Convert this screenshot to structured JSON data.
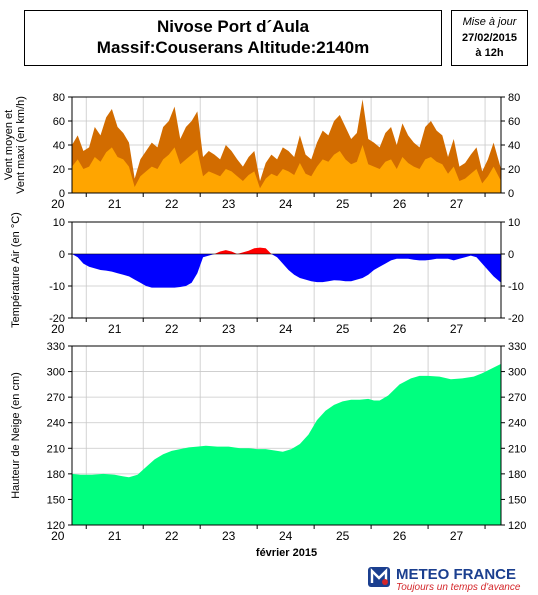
{
  "header": {
    "title_line1": "Nivose Port d´Aula",
    "title_line2": "Massif:Couserans Altitude:2140m"
  },
  "issue": {
    "label": "Mise à jour",
    "date": "27/02/2015",
    "time": "à 12h"
  },
  "footer": {
    "brand": "METEO FRANCE",
    "tagline": "Toujours un temps d'avance"
  },
  "colors": {
    "wind_max": "#d26c00",
    "wind_mean": "#ffa500",
    "temp_neg": "#0000ff",
    "temp_pos": "#ff0000",
    "snow": "#00ff7f",
    "grid": "#c8c8c8"
  },
  "chart_data": [
    {
      "type": "area",
      "ylabel": "Vent moyen et\nVent maxi (en km/h)",
      "ylim": [
        0,
        80
      ],
      "yticks": [
        0,
        20,
        40,
        60,
        80
      ],
      "x_tick_labels": [
        "20",
        "21",
        "22",
        "23",
        "24",
        "25",
        "26",
        "27"
      ],
      "x_start": 19.75,
      "x_end": 27.28,
      "series": [
        {
          "key": "wind_max",
          "x": [
            19.75,
            19.85,
            19.95,
            20.05,
            20.15,
            20.25,
            20.35,
            20.45,
            20.55,
            20.65,
            20.75,
            20.85,
            20.95,
            21.05,
            21.15,
            21.25,
            21.35,
            21.45,
            21.55,
            21.65,
            21.75,
            21.85,
            21.95,
            22.05,
            22.15,
            22.25,
            22.35,
            22.45,
            22.55,
            22.65,
            22.75,
            22.85,
            22.95,
            23.05,
            23.15,
            23.25,
            23.35,
            23.45,
            23.55,
            23.65,
            23.75,
            23.85,
            23.95,
            24.05,
            24.15,
            24.25,
            24.35,
            24.45,
            24.55,
            24.65,
            24.75,
            24.85,
            24.95,
            25.05,
            25.15,
            25.25,
            25.35,
            25.45,
            25.55,
            25.65,
            25.75,
            25.85,
            25.95,
            26.05,
            26.15,
            26.25,
            26.35,
            26.45,
            26.55,
            26.65,
            26.75,
            26.85,
            26.95,
            27.05,
            27.15,
            27.28
          ],
          "values": [
            40,
            48,
            35,
            38,
            55,
            48,
            63,
            70,
            55,
            50,
            42,
            12,
            28,
            35,
            42,
            38,
            55,
            60,
            72,
            45,
            55,
            60,
            68,
            30,
            35,
            32,
            28,
            40,
            35,
            28,
            22,
            30,
            35,
            10,
            25,
            32,
            28,
            38,
            35,
            30,
            48,
            32,
            28,
            42,
            52,
            48,
            60,
            65,
            55,
            45,
            50,
            78,
            45,
            42,
            38,
            50,
            55,
            40,
            58,
            48,
            42,
            38,
            55,
            60,
            52,
            48,
            30,
            45,
            22,
            25,
            32,
            38,
            18,
            28,
            42,
            20
          ]
        },
        {
          "key": "wind_mean",
          "x": [
            19.75,
            19.85,
            19.95,
            20.05,
            20.15,
            20.25,
            20.35,
            20.45,
            20.55,
            20.65,
            20.75,
            20.85,
            20.95,
            21.05,
            21.15,
            21.25,
            21.35,
            21.45,
            21.55,
            21.65,
            21.75,
            21.85,
            21.95,
            22.05,
            22.15,
            22.25,
            22.35,
            22.45,
            22.55,
            22.65,
            22.75,
            22.85,
            22.95,
            23.05,
            23.15,
            23.25,
            23.35,
            23.45,
            23.55,
            23.65,
            23.75,
            23.85,
            23.95,
            24.05,
            24.15,
            24.25,
            24.35,
            24.45,
            24.55,
            24.65,
            24.75,
            24.85,
            24.95,
            25.05,
            25.15,
            25.25,
            25.35,
            25.45,
            25.55,
            25.65,
            25.75,
            25.85,
            25.95,
            26.05,
            26.15,
            26.25,
            26.35,
            26.45,
            26.55,
            26.65,
            26.75,
            26.85,
            26.95,
            27.05,
            27.15,
            27.28
          ],
          "values": [
            22,
            28,
            20,
            22,
            30,
            26,
            34,
            38,
            30,
            28,
            22,
            5,
            14,
            18,
            22,
            20,
            28,
            32,
            38,
            24,
            28,
            32,
            36,
            14,
            18,
            16,
            14,
            20,
            18,
            14,
            10,
            15,
            18,
            4,
            12,
            16,
            14,
            20,
            18,
            15,
            25,
            16,
            14,
            22,
            28,
            26,
            32,
            35,
            28,
            24,
            26,
            40,
            24,
            22,
            20,
            26,
            28,
            20,
            30,
            25,
            22,
            20,
            28,
            30,
            26,
            24,
            16,
            22,
            10,
            12,
            16,
            20,
            8,
            14,
            22,
            10
          ]
        }
      ]
    },
    {
      "type": "area",
      "ylabel": "Température Air (en °C)",
      "ylim": [
        -20,
        10
      ],
      "yticks": [
        -20,
        -10,
        0,
        10
      ],
      "x_tick_labels": [
        "20",
        "21",
        "22",
        "23",
        "24",
        "25",
        "26",
        "27"
      ],
      "x_start": 19.75,
      "x_end": 27.28,
      "x": [
        19.75,
        19.85,
        19.95,
        20.05,
        20.15,
        20.25,
        20.35,
        20.45,
        20.55,
        20.65,
        20.75,
        20.85,
        20.95,
        21.05,
        21.15,
        21.25,
        21.35,
        21.45,
        21.55,
        21.65,
        21.75,
        21.85,
        21.95,
        22.05,
        22.15,
        22.25,
        22.35,
        22.45,
        22.55,
        22.65,
        22.75,
        22.85,
        22.95,
        23.05,
        23.15,
        23.25,
        23.35,
        23.45,
        23.55,
        23.65,
        23.75,
        23.85,
        23.95,
        24.05,
        24.15,
        24.25,
        24.35,
        24.45,
        24.55,
        24.65,
        24.75,
        24.85,
        24.95,
        25.05,
        25.15,
        25.25,
        25.35,
        25.45,
        25.55,
        25.65,
        25.75,
        25.85,
        25.95,
        26.05,
        26.15,
        26.25,
        26.35,
        26.45,
        26.55,
        26.65,
        26.75,
        26.85,
        26.95,
        27.05,
        27.15,
        27.28
      ],
      "values": [
        0,
        -1,
        -3,
        -4,
        -4.5,
        -5,
        -5.2,
        -5.5,
        -6,
        -6.5,
        -7,
        -8,
        -9,
        -10,
        -10.5,
        -10.5,
        -10.5,
        -10.5,
        -10.5,
        -10.3,
        -10,
        -9,
        -6,
        -1,
        -0.5,
        0,
        0.8,
        1.2,
        0.8,
        0,
        0.5,
        1,
        1.8,
        2,
        1.8,
        0,
        -1,
        -3,
        -5,
        -6.5,
        -7.5,
        -8,
        -8.5,
        -8.8,
        -8.8,
        -8.5,
        -8.2,
        -8.3,
        -8.5,
        -8.5,
        -8,
        -7.5,
        -6.5,
        -5,
        -4,
        -3,
        -2,
        -1.5,
        -1.5,
        -1.5,
        -1.8,
        -2,
        -2,
        -1.8,
        -1.5,
        -1.5,
        -1.5,
        -2,
        -1.5,
        -1,
        -0.5,
        -1,
        -3,
        -5,
        -7,
        -9
      ]
    },
    {
      "type": "area",
      "ylabel": "Hauteur de Neige (en cm)",
      "xlabel": "février 2015",
      "ylim": [
        120,
        330
      ],
      "yticks": [
        120,
        150,
        180,
        210,
        240,
        270,
        300,
        330
      ],
      "x_tick_labels": [
        "20",
        "21",
        "22",
        "23",
        "24",
        "25",
        "26",
        "27"
      ],
      "x_start": 19.75,
      "x_end": 27.28,
      "x": [
        19.75,
        19.9,
        20.1,
        20.3,
        20.5,
        20.65,
        20.75,
        20.9,
        21.05,
        21.2,
        21.35,
        21.5,
        21.65,
        21.8,
        21.95,
        22.1,
        22.3,
        22.5,
        22.7,
        22.85,
        23.0,
        23.15,
        23.25,
        23.35,
        23.45,
        23.6,
        23.75,
        23.9,
        24.05,
        24.2,
        24.35,
        24.5,
        24.65,
        24.8,
        24.95,
        25.05,
        25.15,
        25.3,
        25.5,
        25.7,
        25.85,
        26.0,
        26.2,
        26.4,
        26.6,
        26.8,
        26.95,
        27.1,
        27.28
      ],
      "values": [
        180,
        179,
        179,
        180,
        179,
        177,
        176,
        179,
        188,
        197,
        203,
        207,
        209,
        211,
        212,
        213,
        212,
        212,
        210,
        210,
        209,
        209,
        208,
        207,
        206,
        209,
        215,
        226,
        243,
        254,
        261,
        265,
        267,
        267,
        268,
        266,
        266,
        272,
        285,
        292,
        295,
        295,
        294,
        291,
        292,
        294,
        298,
        303,
        309
      ]
    }
  ]
}
